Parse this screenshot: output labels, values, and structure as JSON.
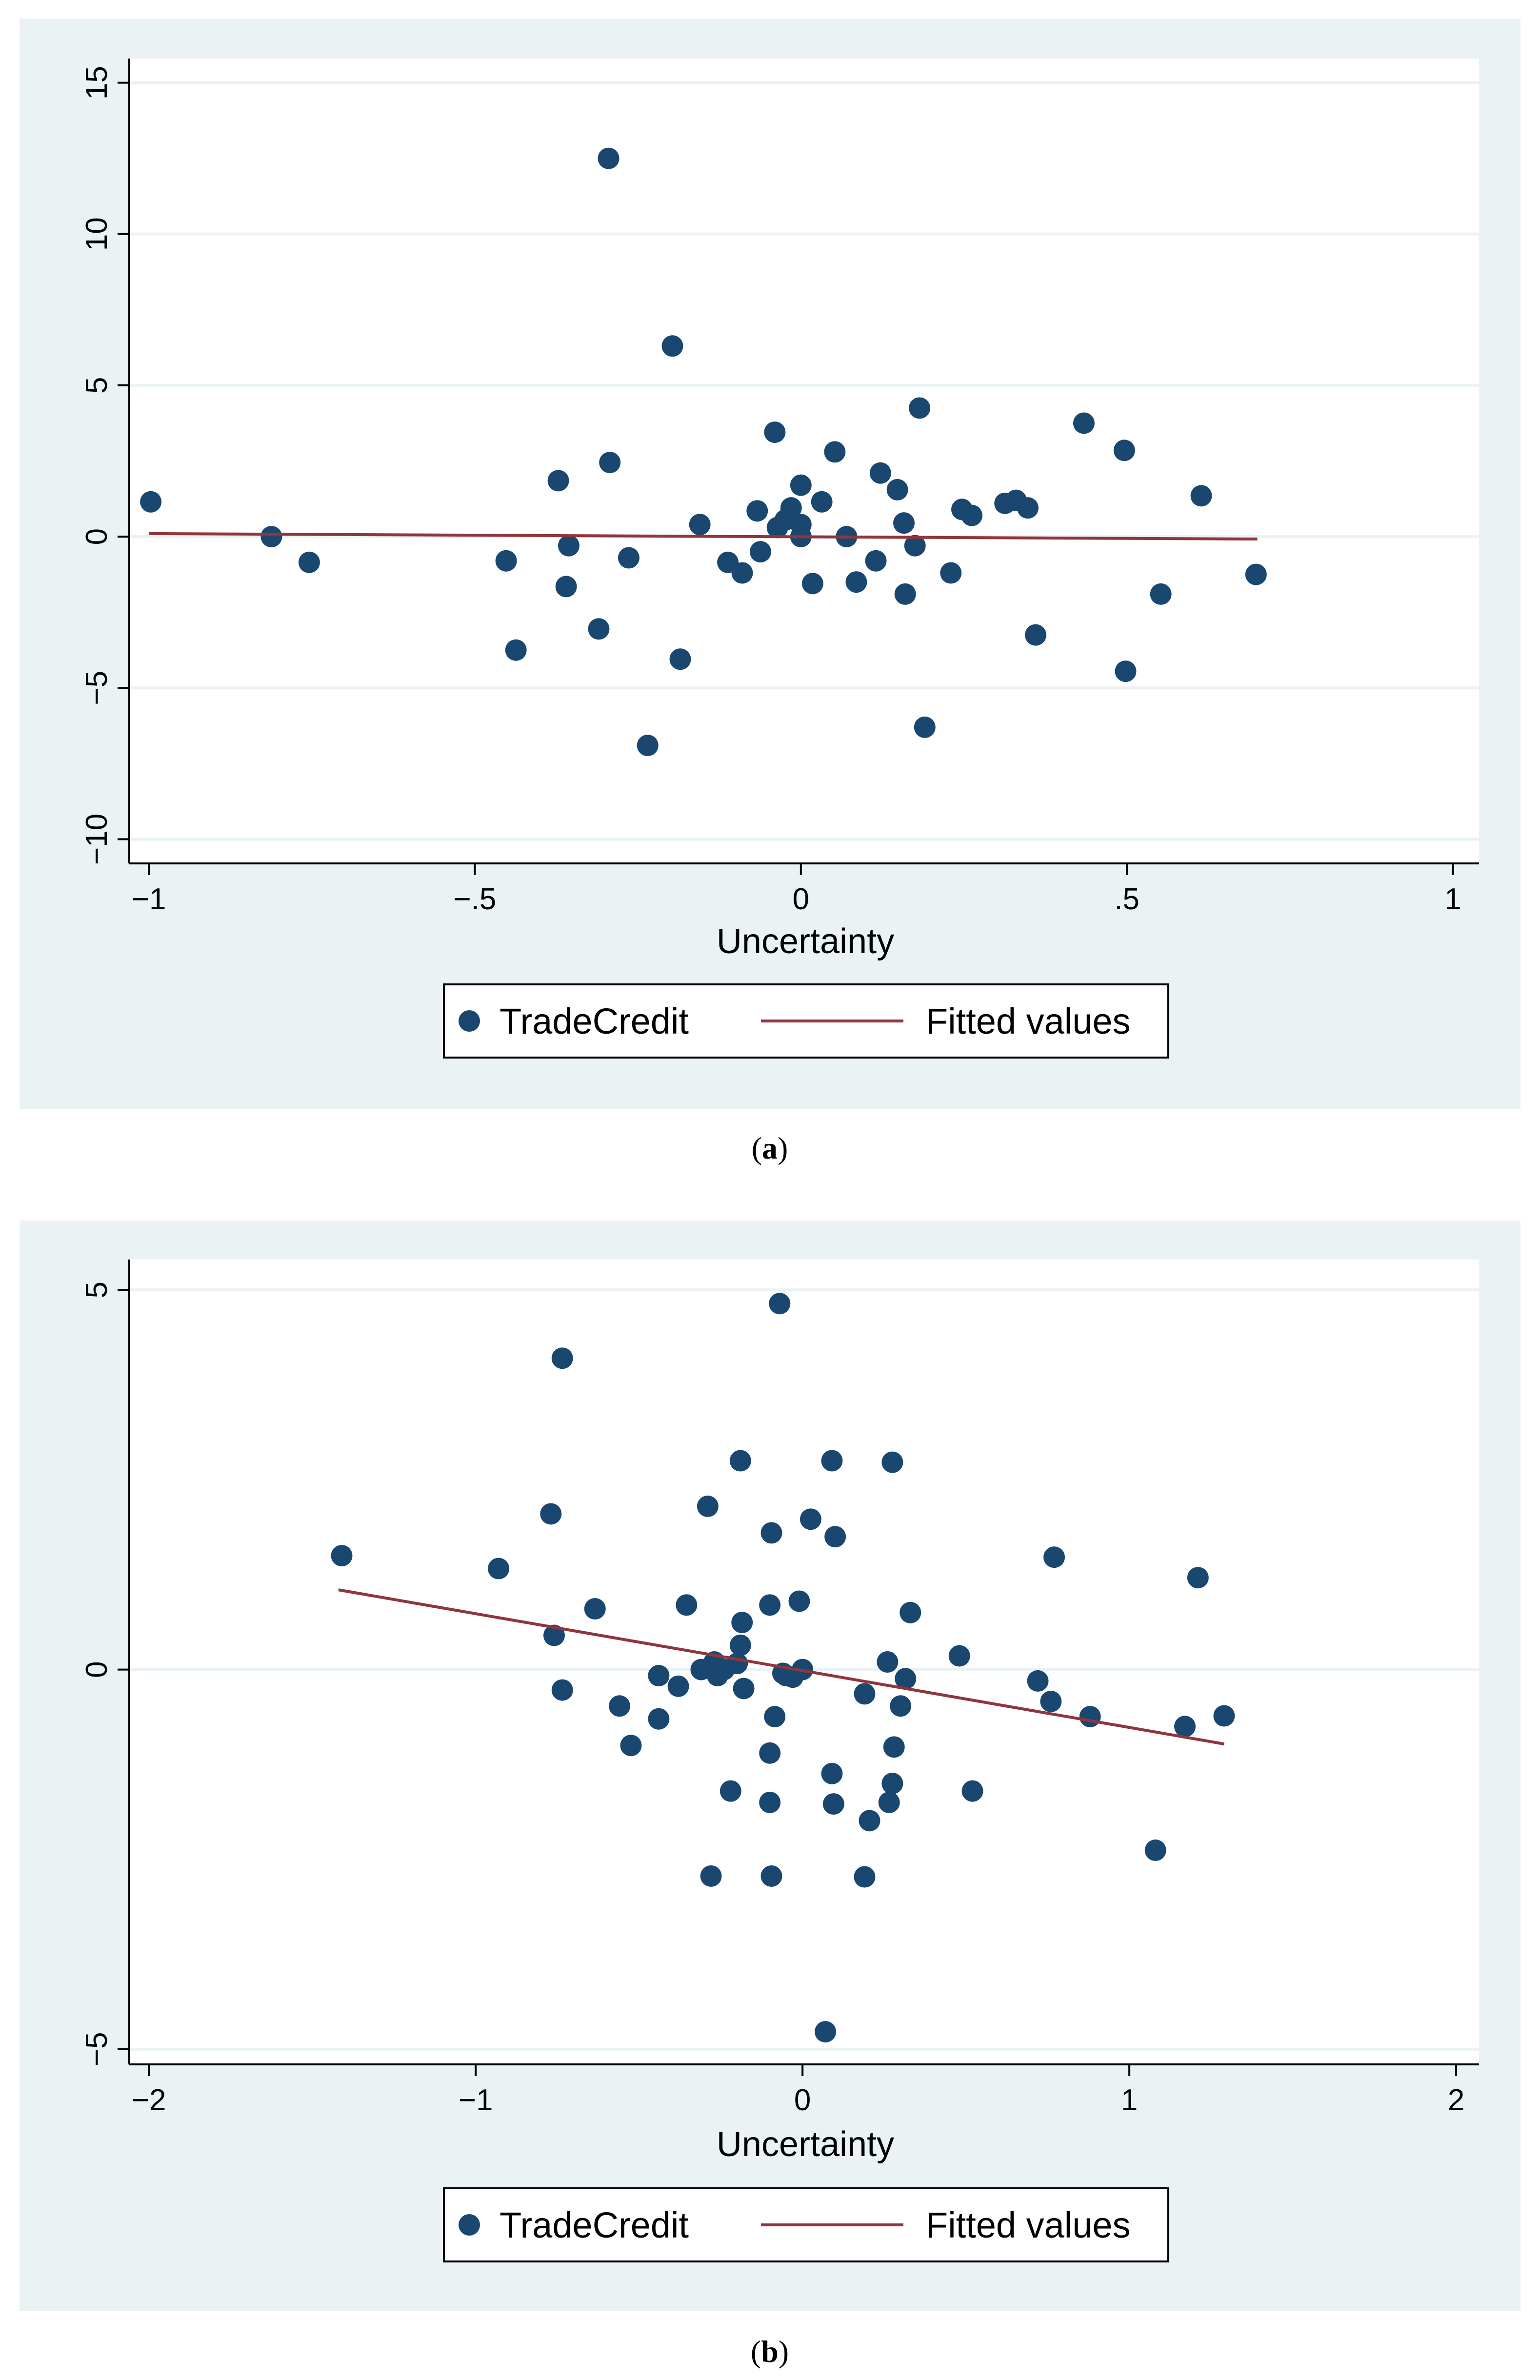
{
  "chart_data": [
    {
      "type": "scatter",
      "caption_letter": "a",
      "xlabel": "Uncertainty",
      "ylabel": "",
      "xlim": [
        -1.03,
        1.04
      ],
      "ylim": [
        -10.8,
        15.8
      ],
      "xticks": [
        -1,
        -0.5,
        0,
        0.5,
        1
      ],
      "xtick_labels": [
        "−1",
        "−.5",
        "0",
        ".5",
        "1"
      ],
      "yticks": [
        -10,
        -5,
        0,
        5,
        10,
        15
      ],
      "ytick_labels": [
        "−10",
        "−5",
        "0",
        "5",
        "10",
        "15"
      ],
      "grid": true,
      "legend": {
        "position": "bottom",
        "entries": [
          "TradeCredit",
          "Fitted values"
        ]
      },
      "series": [
        {
          "name": "TradeCredit",
          "kind": "scatter",
          "color": "#1a476f",
          "points": [
            [
              -0.997,
              1.15
            ],
            [
              -0.812,
              0.0
            ],
            [
              -0.754,
              -0.85
            ],
            [
              -0.452,
              -0.8
            ],
            [
              -0.437,
              -3.75
            ],
            [
              -0.372,
              1.85
            ],
            [
              -0.36,
              -1.65
            ],
            [
              -0.356,
              -0.3
            ],
            [
              -0.31,
              -3.05
            ],
            [
              -0.295,
              12.5
            ],
            [
              -0.293,
              2.45
            ],
            [
              -0.264,
              -0.7
            ],
            [
              -0.235,
              -6.9
            ],
            [
              -0.197,
              6.3
            ],
            [
              -0.185,
              -4.05
            ],
            [
              -0.155,
              0.4
            ],
            [
              -0.112,
              -0.85
            ],
            [
              -0.09,
              -1.2
            ],
            [
              -0.067,
              0.85
            ],
            [
              -0.062,
              -0.5
            ],
            [
              -0.04,
              3.45
            ],
            [
              -0.036,
              0.3
            ],
            [
              -0.024,
              0.55
            ],
            [
              -0.015,
              0.95
            ],
            [
              0.0,
              1.7
            ],
            [
              0.0,
              0.0
            ],
            [
              0.0,
              0.4
            ],
            [
              0.018,
              -1.55
            ],
            [
              0.032,
              1.15
            ],
            [
              0.052,
              2.8
            ],
            [
              0.07,
              0.0
            ],
            [
              0.085,
              -1.5
            ],
            [
              0.115,
              -0.8
            ],
            [
              0.122,
              2.1
            ],
            [
              0.148,
              1.55
            ],
            [
              0.158,
              0.45
            ],
            [
              0.16,
              -1.9
            ],
            [
              0.175,
              -0.3
            ],
            [
              0.182,
              4.25
            ],
            [
              0.19,
              -6.3
            ],
            [
              0.23,
              -1.2
            ],
            [
              0.247,
              0.9
            ],
            [
              0.262,
              0.7
            ],
            [
              0.313,
              1.1
            ],
            [
              0.33,
              1.2
            ],
            [
              0.348,
              0.95
            ],
            [
              0.36,
              -3.25
            ],
            [
              0.434,
              3.75
            ],
            [
              0.496,
              2.85
            ],
            [
              0.498,
              -4.45
            ],
            [
              0.552,
              -1.9
            ],
            [
              0.614,
              1.35
            ],
            [
              0.698,
              -1.25
            ]
          ]
        },
        {
          "name": "Fitted values",
          "kind": "line",
          "color": "#90353b",
          "x": [
            -1.0,
            0.7
          ],
          "y": [
            0.1,
            -0.08
          ]
        }
      ]
    },
    {
      "type": "scatter",
      "caption_letter": "b",
      "xlabel": "Uncertainty",
      "ylabel": "",
      "xlim": [
        -2.06,
        2.07
      ],
      "ylim": [
        -5.2,
        5.4
      ],
      "xticks": [
        -2,
        -1,
        0,
        1,
        2
      ],
      "xtick_labels": [
        "−2",
        "−1",
        "0",
        "1",
        "2"
      ],
      "yticks": [
        -5,
        0,
        5
      ],
      "ytick_labels": [
        "−5",
        "0",
        "5"
      ],
      "grid": true,
      "legend": {
        "position": "bottom",
        "entries": [
          "TradeCredit",
          "Fitted values"
        ]
      },
      "series": [
        {
          "name": "TradeCredit",
          "kind": "scatter",
          "color": "#1a476f",
          "points": [
            [
              -1.41,
              1.5
            ],
            [
              -0.93,
              1.33
            ],
            [
              -0.77,
              2.05
            ],
            [
              -0.76,
              0.45
            ],
            [
              -0.735,
              4.1
            ],
            [
              -0.735,
              -0.27
            ],
            [
              -0.635,
              0.8
            ],
            [
              -0.56,
              -0.48
            ],
            [
              -0.525,
              -1.0
            ],
            [
              -0.44,
              -0.08
            ],
            [
              -0.44,
              -0.65
            ],
            [
              -0.38,
              -0.22
            ],
            [
              -0.355,
              0.85
            ],
            [
              -0.31,
              0.0
            ],
            [
              -0.29,
              2.15
            ],
            [
              -0.28,
              -2.72
            ],
            [
              -0.27,
              0.1
            ],
            [
              -0.26,
              -0.08
            ],
            [
              -0.24,
              0.0
            ],
            [
              -0.22,
              -1.6
            ],
            [
              -0.2,
              0.08
            ],
            [
              -0.19,
              2.75
            ],
            [
              -0.19,
              0.32
            ],
            [
              -0.185,
              0.62
            ],
            [
              -0.18,
              -0.25
            ],
            [
              -0.1,
              0.85
            ],
            [
              -0.1,
              -1.1
            ],
            [
              -0.1,
              -1.75
            ],
            [
              -0.095,
              1.8
            ],
            [
              -0.095,
              -2.72
            ],
            [
              -0.085,
              -0.62
            ],
            [
              -0.07,
              4.82
            ],
            [
              -0.06,
              -0.05
            ],
            [
              -0.05,
              -0.08
            ],
            [
              -0.03,
              -0.1
            ],
            [
              -0.01,
              0.9
            ],
            [
              0.0,
              0.0
            ],
            [
              0.025,
              1.98
            ],
            [
              0.07,
              -4.77
            ],
            [
              0.09,
              2.75
            ],
            [
              0.09,
              -1.37
            ],
            [
              0.095,
              -1.77
            ],
            [
              0.1,
              1.75
            ],
            [
              0.19,
              -0.32
            ],
            [
              0.19,
              -2.73
            ],
            [
              0.205,
              -1.99
            ],
            [
              0.26,
              0.1
            ],
            [
              0.265,
              -1.75
            ],
            [
              0.275,
              -1.5
            ],
            [
              0.275,
              2.73
            ],
            [
              0.28,
              -1.02
            ],
            [
              0.3,
              -0.48
            ],
            [
              0.315,
              -0.12
            ],
            [
              0.33,
              0.75
            ],
            [
              0.48,
              0.18
            ],
            [
              0.52,
              -1.6
            ],
            [
              0.72,
              -0.15
            ],
            [
              0.76,
              -0.42
            ],
            [
              0.77,
              1.48
            ],
            [
              0.88,
              -0.62
            ],
            [
              1.08,
              -2.38
            ],
            [
              1.17,
              -0.75
            ],
            [
              1.21,
              1.21
            ],
            [
              1.29,
              -0.61
            ]
          ]
        },
        {
          "name": "Fitted values",
          "kind": "line",
          "color": "#90353b",
          "x": [
            -1.42,
            1.29
          ],
          "y": [
            1.05,
            -0.98
          ]
        }
      ]
    }
  ]
}
